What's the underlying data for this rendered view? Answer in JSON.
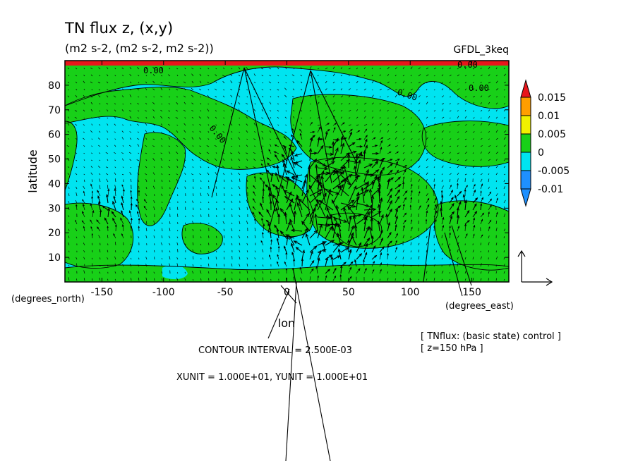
{
  "header": {
    "title": "TN flux z, (x,y)",
    "subtitle": "(m2 s-2, (m2 s-2, m2 s-2))",
    "dataset": "GFDL_3keq"
  },
  "axes": {
    "ylabel": "latitude",
    "xlabel": "lon",
    "y_units": "(degrees_north)",
    "x_units": "(degrees_east)"
  },
  "notes": {
    "basic_state": "[ TNflux: (basic state) control ]",
    "level": "[ z=150 hPa ]",
    "contour_interval": "CONTOUR INTERVAL = 2.500E-03",
    "units": "XUNIT = 1.000E+01, YUNIT = 1.000E+01"
  },
  "contour_labels": [
    "0.00",
    "0.00",
    "0.00",
    "0.00",
    "0.00"
  ],
  "colorbar": {
    "levels": [
      {
        "label": "0.015",
        "color": "#e8161b"
      },
      {
        "label": "0.01",
        "color": "#ff9e00"
      },
      {
        "label": "0.005",
        "color": "#f0f000"
      },
      {
        "label": "0",
        "color": "#18d018"
      },
      {
        "label": "-0.005",
        "color": "#00e4f0"
      },
      {
        "label": "-0.01",
        "color": "#1e90ff"
      }
    ],
    "top_color": "#e8161b",
    "bottom_color": "#1e90ff"
  },
  "colors": {
    "ocean_cyan": "#00e4f0",
    "green": "#18d018",
    "red": "#e8161b",
    "line": "#000000"
  },
  "chart_data": {
    "type": "heatmap",
    "title": "TN flux z, (x,y)",
    "subtitle": "(m2 s-2, (m2 s-2, m2 s-2))",
    "xlabel": "lon",
    "ylabel": "latitude",
    "xlim": [
      -180,
      180
    ],
    "ylim": [
      0,
      90
    ],
    "x_ticks": [
      {
        "value": -150,
        "label": "-150"
      },
      {
        "value": -100,
        "label": "-100"
      },
      {
        "value": -50,
        "label": "-50"
      },
      {
        "value": 0,
        "label": "0"
      },
      {
        "value": 50,
        "label": "50"
      },
      {
        "value": 100,
        "label": "100"
      },
      {
        "value": 150,
        "label": "150"
      }
    ],
    "y_ticks": [
      {
        "value": 10,
        "label": "10"
      },
      {
        "value": 20,
        "label": "20"
      },
      {
        "value": 30,
        "label": "30"
      },
      {
        "value": 40,
        "label": "40"
      },
      {
        "value": 50,
        "label": "50"
      },
      {
        "value": 60,
        "label": "60"
      },
      {
        "value": 70,
        "label": "70"
      },
      {
        "value": 80,
        "label": "80"
      }
    ],
    "contour_interval": 0.0025,
    "contour_levels": [
      -0.01,
      -0.005,
      0,
      0.005,
      0.01,
      0.015
    ],
    "vector_reference": {
      "xunit": 10,
      "yunit": 10
    }
  }
}
